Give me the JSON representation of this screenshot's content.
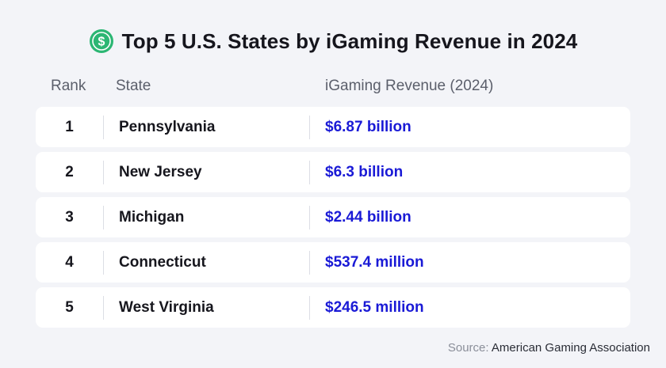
{
  "colors": {
    "accent_green": "#2bb673",
    "revenue_blue": "#1a1ad6",
    "text_dark": "#16161d",
    "background": "#f3f4f8"
  },
  "chart_data": {
    "type": "table",
    "title": "Top 5 U.S. States by iGaming Revenue in 2024",
    "icon": "dollar-coin-icon",
    "columns": [
      "Rank",
      "State",
      "iGaming Revenue (2024)"
    ],
    "rows": [
      {
        "rank": "1",
        "state": "Pennsylvania",
        "revenue": "$6.87 billion"
      },
      {
        "rank": "2",
        "state": "New Jersey",
        "revenue": "$6.3 billion"
      },
      {
        "rank": "3",
        "state": "Michigan",
        "revenue": "$2.44 billion"
      },
      {
        "rank": "4",
        "state": "Connecticut",
        "revenue": "$537.4 million"
      },
      {
        "rank": "5",
        "state": "West Virginia",
        "revenue": "$246.5 million"
      }
    ],
    "source_label": "Source:",
    "source_value": "American Gaming Association"
  }
}
